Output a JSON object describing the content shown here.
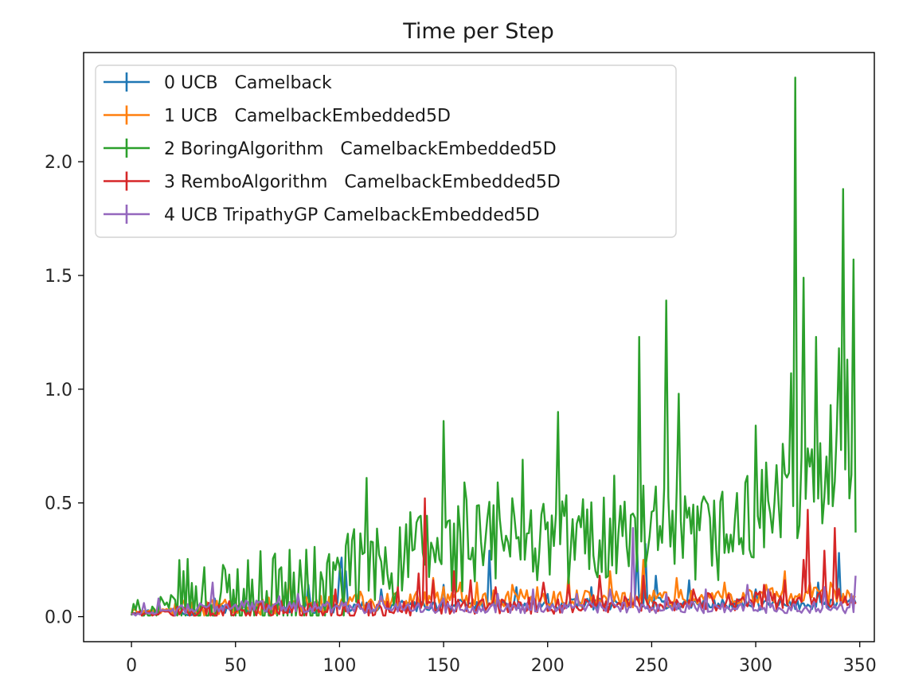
{
  "chart_data": {
    "type": "line",
    "title": "Time per Step",
    "xlabel": "",
    "ylabel": "",
    "xlim": [
      -23,
      357
    ],
    "ylim": [
      -0.11,
      2.48
    ],
    "x_ticks": [
      0,
      50,
      100,
      150,
      200,
      250,
      300,
      350
    ],
    "y_ticks": [
      0.0,
      0.5,
      1.0,
      1.5,
      2.0
    ],
    "x_tick_labels": [
      "0",
      "50",
      "100",
      "150",
      "200",
      "250",
      "300",
      "350"
    ],
    "y_tick_labels": [
      "0.0",
      "0.5",
      "1.0",
      "1.5",
      "2.0"
    ],
    "grid": false,
    "legend_position": "upper-left",
    "n_points": 349,
    "series": [
      {
        "name": "0 UCB   Camelback",
        "color": "#1f77b4",
        "base": [
          [
            0,
            0.02
          ],
          [
            50,
            0.04
          ],
          [
            100,
            0.04
          ],
          [
            150,
            0.05
          ],
          [
            200,
            0.05
          ],
          [
            250,
            0.06
          ],
          [
            300,
            0.05
          ],
          [
            348,
            0.06
          ]
        ],
        "noise": 0.025,
        "spikes": [
          [
            40,
            0.08
          ],
          [
            85,
            0.14
          ],
          [
            100,
            0.2
          ],
          [
            101,
            0.26
          ],
          [
            103,
            0.2
          ],
          [
            120,
            0.12
          ],
          [
            150,
            0.14
          ],
          [
            172,
            0.29
          ],
          [
            185,
            0.13
          ],
          [
            200,
            0.1
          ],
          [
            221,
            0.13
          ],
          [
            243,
            0.3
          ],
          [
            247,
            0.32
          ],
          [
            252,
            0.18
          ],
          [
            268,
            0.16
          ],
          [
            300,
            0.12
          ],
          [
            330,
            0.15
          ],
          [
            340,
            0.28
          ]
        ]
      },
      {
        "name": "1 UCB   CamelbackEmbedded5D",
        "color": "#ff7f0e",
        "base": [
          [
            0,
            0.02
          ],
          [
            50,
            0.04
          ],
          [
            100,
            0.06
          ],
          [
            150,
            0.08
          ],
          [
            200,
            0.08
          ],
          [
            250,
            0.08
          ],
          [
            300,
            0.09
          ],
          [
            348,
            0.09
          ]
        ],
        "noise": 0.04,
        "spikes": [
          [
            76,
            0.18
          ],
          [
            110,
            0.11
          ],
          [
            145,
            0.17
          ],
          [
            150,
            0.13
          ],
          [
            158,
            0.15
          ],
          [
            166,
            0.15
          ],
          [
            183,
            0.14
          ],
          [
            195,
            0.13
          ],
          [
            210,
            0.19
          ],
          [
            230,
            0.2
          ],
          [
            246,
            0.25
          ],
          [
            262,
            0.17
          ],
          [
            285,
            0.15
          ],
          [
            305,
            0.14
          ],
          [
            314,
            0.2
          ],
          [
            326,
            0.15
          ],
          [
            336,
            0.15
          ],
          [
            345,
            0.1
          ]
        ]
      },
      {
        "name": "2 BoringAlgorithm   CamelbackEmbedded5D",
        "color": "#2ca02c",
        "base": [
          [
            0,
            0.01
          ],
          [
            30,
            0.04
          ],
          [
            60,
            0.07
          ],
          [
            90,
            0.1
          ],
          [
            100,
            0.14
          ],
          [
            110,
            0.2
          ],
          [
            130,
            0.25
          ],
          [
            150,
            0.3
          ],
          [
            200,
            0.33
          ],
          [
            250,
            0.36
          ],
          [
            270,
            0.33
          ],
          [
            290,
            0.38
          ],
          [
            310,
            0.5
          ],
          [
            330,
            0.6
          ],
          [
            348,
            0.7
          ]
        ],
        "noise": 0.22,
        "spikes": [
          [
            113,
            0.61
          ],
          [
            150,
            0.86
          ],
          [
            160,
            0.59
          ],
          [
            176,
            0.59
          ],
          [
            188,
            0.69
          ],
          [
            205,
            0.9
          ],
          [
            232,
            0.62
          ],
          [
            244,
            1.23
          ],
          [
            257,
            1.39
          ],
          [
            263,
            0.98
          ],
          [
            300,
            0.84
          ],
          [
            313,
            0.76
          ],
          [
            317,
            1.07
          ],
          [
            319,
            2.37
          ],
          [
            323,
            1.49
          ],
          [
            329,
            1.23
          ],
          [
            336,
            0.93
          ],
          [
            340,
            1.18
          ],
          [
            342,
            1.88
          ],
          [
            344,
            1.13
          ],
          [
            347,
            1.57
          ],
          [
            348,
            0.37
          ]
        ]
      },
      {
        "name": "3 RemboAlgorithm   CamelbackEmbedded5D",
        "color": "#d62728",
        "base": [
          [
            0,
            0.01
          ],
          [
            50,
            0.03
          ],
          [
            100,
            0.03
          ],
          [
            150,
            0.04
          ],
          [
            200,
            0.05
          ],
          [
            250,
            0.06
          ],
          [
            300,
            0.07
          ],
          [
            348,
            0.07
          ]
        ],
        "noise": 0.04,
        "spikes": [
          [
            80,
            0.08
          ],
          [
            98,
            0.12
          ],
          [
            128,
            0.13
          ],
          [
            138,
            0.19
          ],
          [
            141,
            0.52
          ],
          [
            145,
            0.16
          ],
          [
            155,
            0.2
          ],
          [
            163,
            0.16
          ],
          [
            175,
            0.13
          ],
          [
            198,
            0.15
          ],
          [
            210,
            0.14
          ],
          [
            225,
            0.18
          ],
          [
            246,
            0.18
          ],
          [
            270,
            0.12
          ],
          [
            304,
            0.14
          ],
          [
            314,
            0.16
          ],
          [
            323,
            0.25
          ],
          [
            325,
            0.47
          ],
          [
            333,
            0.29
          ],
          [
            338,
            0.39
          ],
          [
            340,
            0.12
          ]
        ]
      },
      {
        "name": "4 UCB TripathyGP CamelbackEmbedded5D",
        "color": "#9467bd",
        "base": [
          [
            0,
            0.01
          ],
          [
            50,
            0.05
          ],
          [
            100,
            0.04
          ],
          [
            150,
            0.04
          ],
          [
            200,
            0.04
          ],
          [
            250,
            0.04
          ],
          [
            300,
            0.04
          ],
          [
            348,
            0.04
          ]
        ],
        "noise": 0.025,
        "spikes": [
          [
            6,
            0.06
          ],
          [
            13,
            0.08
          ],
          [
            39,
            0.15
          ],
          [
            71,
            0.09
          ],
          [
            80,
            0.1
          ],
          [
            120,
            0.09
          ],
          [
            150,
            0.08
          ],
          [
            176,
            0.1
          ],
          [
            193,
            0.12
          ],
          [
            214,
            0.1
          ],
          [
            230,
            0.12
          ],
          [
            241,
            0.39
          ],
          [
            257,
            0.1
          ],
          [
            276,
            0.12
          ],
          [
            296,
            0.14
          ],
          [
            306,
            0.12
          ],
          [
            333,
            0.13
          ],
          [
            346,
            0.1
          ],
          [
            348,
            0.18
          ]
        ]
      }
    ]
  }
}
